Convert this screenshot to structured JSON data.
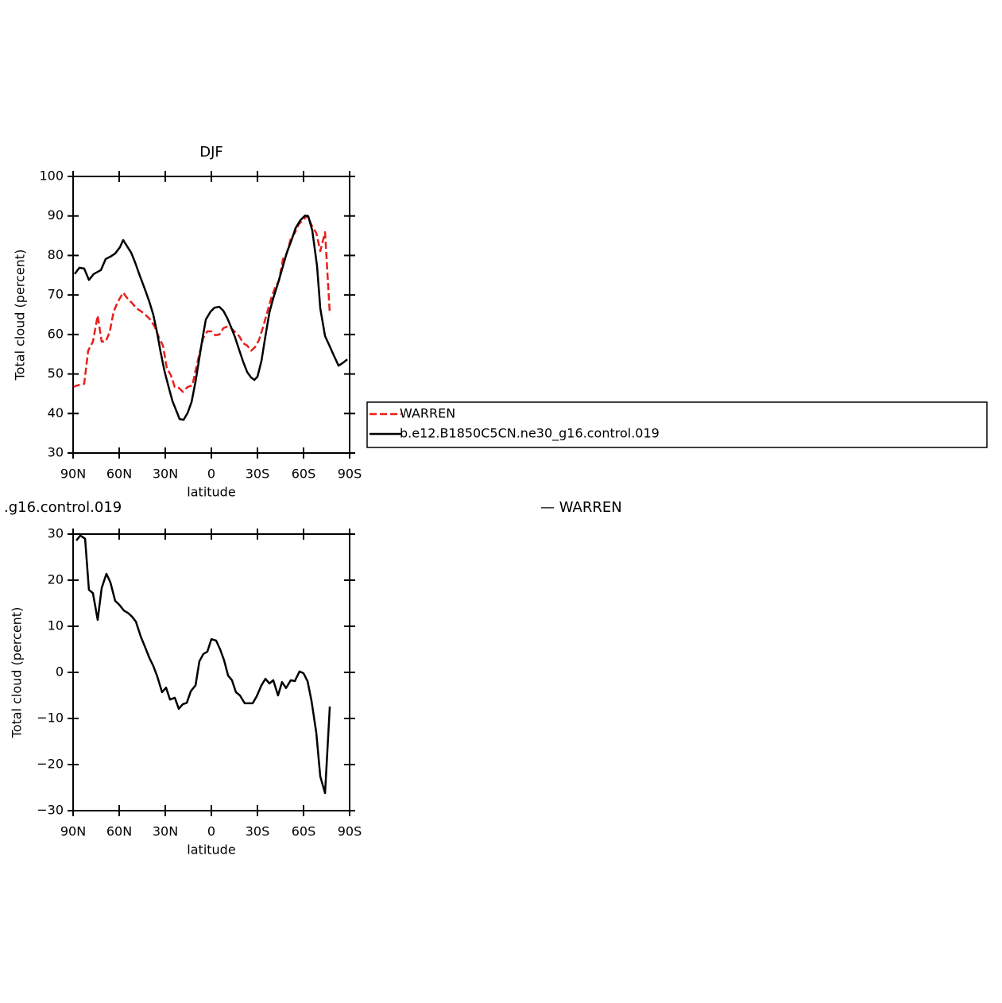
{
  "chart_data": [
    {
      "type": "line",
      "title": "DJF",
      "xlabel": "latitude",
      "ylabel": "Total cloud (percent)",
      "xlim": [
        90,
        -90
      ],
      "xticks": [
        {
          "value": 90,
          "label": "90N"
        },
        {
          "value": 60,
          "label": "60N"
        },
        {
          "value": 30,
          "label": "30N"
        },
        0,
        {
          "value": -30,
          "label": "30S"
        },
        {
          "value": -60,
          "label": "60S"
        },
        {
          "value": -90,
          "label": "90S"
        }
      ],
      "ylim": [
        30,
        100
      ],
      "yticks": [
        30,
        40,
        50,
        60,
        70,
        80,
        90,
        100
      ],
      "legend": "right",
      "series": [
        {
          "name": "WARREN",
          "color": "#e8201c",
          "dash": true,
          "x": [
            90,
            87.4,
            82.8,
            80.2,
            77.1,
            74.0,
            71.4,
            68.8,
            66.2,
            63.6,
            61.0,
            57.4,
            54.8,
            52.2,
            48.6,
            45.5,
            42.4,
            39.3,
            36.7,
            34.1,
            31.5,
            29.0,
            26.4,
            23.8,
            21.2,
            18.6,
            15.5,
            12.4,
            10.3,
            7.8,
            5.2,
            2.6,
            0,
            -2.6,
            -5.2,
            -7.8,
            -10.3,
            -12.9,
            -15.5,
            -18.1,
            -20.7,
            -23.3,
            -25.9,
            -28.4,
            -31.0,
            -33.6,
            -36.2,
            -38.8,
            -41.4,
            -44.0,
            -46.6,
            -49.1,
            -51.7,
            -54.3,
            -56.9,
            -59.5,
            -62.6,
            -65.2,
            -68.3,
            -70.9,
            -74.0,
            -77.1
          ],
          "values": [
            46.7,
            47.1,
            47.5,
            55.9,
            58.2,
            64.8,
            58.2,
            58.2,
            60.6,
            65.8,
            68.2,
            70.6,
            69.2,
            68.2,
            66.6,
            65.8,
            64.8,
            63.6,
            61.8,
            59.2,
            57.2,
            51.5,
            49.7,
            46.7,
            46.5,
            45.5,
            46.7,
            47.1,
            50.9,
            55.1,
            59.2,
            60.8,
            60.8,
            59.8,
            60.0,
            61.6,
            62.0,
            61.6,
            60.6,
            59.6,
            57.8,
            57.2,
            55.9,
            56.8,
            58.6,
            61.8,
            65.4,
            69.0,
            71.8,
            73.6,
            79.1,
            80.5,
            84.3,
            85.7,
            87.9,
            88.9,
            90.1,
            87.7,
            85.7,
            81.1,
            85.9,
            65.2
          ]
        },
        {
          "name": "b.e12.B1850C5CN.ne30_g16.control.019",
          "color": "#000000",
          "x": [
            89.0,
            85.9,
            82.8,
            79.7,
            76.6,
            71.9,
            68.8,
            65.7,
            62.6,
            59.5,
            57.4,
            54.8,
            52.2,
            49.7,
            46.6,
            43.4,
            40.3,
            37.8,
            35.2,
            33.1,
            30.5,
            27.4,
            25.3,
            22.8,
            20.7,
            18.1,
            15.5,
            12.9,
            10.3,
            7.8,
            5.7,
            3.6,
            0.5,
            -2.1,
            -5.2,
            -7.8,
            -10.3,
            -12.9,
            -15.5,
            -18.1,
            -20.7,
            -23.3,
            -25.9,
            -28.0,
            -30.0,
            -32.6,
            -35.2,
            -37.8,
            -40.3,
            -43.4,
            -46.6,
            -49.1,
            -52.2,
            -54.8,
            -57.9,
            -61.0,
            -63.1,
            -65.7,
            -68.8,
            -70.9,
            -74.0,
            -76.6,
            -79.7,
            -82.8,
            -85.9,
            -88.5
          ],
          "values": [
            75.3,
            76.9,
            76.7,
            73.8,
            75.3,
            76.3,
            79.1,
            79.7,
            80.5,
            82.1,
            83.9,
            82.3,
            80.7,
            78.3,
            74.9,
            71.6,
            68.2,
            65.0,
            60.2,
            55.7,
            50.7,
            46.1,
            43.1,
            40.7,
            38.6,
            38.4,
            40.1,
            42.9,
            48.1,
            54.1,
            59.2,
            63.8,
            65.8,
            66.8,
            67.0,
            66.0,
            64.2,
            61.8,
            59.2,
            56.1,
            53.1,
            50.5,
            49.1,
            48.5,
            49.3,
            53.3,
            59.6,
            65.6,
            69.2,
            73.0,
            77.3,
            80.7,
            83.9,
            86.9,
            88.9,
            90.1,
            89.9,
            86.3,
            77.3,
            66.6,
            59.6,
            57.4,
            54.7,
            52.1,
            52.9,
            53.7
          ]
        }
      ]
    },
    {
      "type": "line",
      "title_left": ".g16.control.019",
      "title_right": "— WARREN",
      "xlabel": "latitude",
      "ylabel": "Total cloud (percent)",
      "xlim": [
        90,
        -90
      ],
      "xticks": [
        {
          "value": 90,
          "label": "90N"
        },
        {
          "value": 60,
          "label": "60N"
        },
        {
          "value": 30,
          "label": "30N"
        },
        0,
        {
          "value": -30,
          "label": "30S"
        },
        {
          "value": -60,
          "label": "60S"
        },
        {
          "value": -90,
          "label": "90S"
        }
      ],
      "ylim": [
        -30,
        30
      ],
      "yticks": [
        {
          "value": -30,
          "label": "−30"
        },
        {
          "value": -20,
          "label": "−20"
        },
        {
          "value": -10,
          "label": "−10"
        },
        0,
        10,
        20,
        30
      ],
      "series": [
        {
          "color": "#000000",
          "x": [
            87.9,
            85.3,
            82.2,
            79.7,
            77.1,
            74.0,
            71.4,
            68.3,
            65.7,
            62.6,
            60.0,
            56.9,
            54.3,
            51.7,
            49.1,
            46.0,
            43.4,
            40.3,
            37.8,
            35.2,
            32.1,
            29.5,
            26.9,
            23.8,
            21.2,
            18.6,
            16.0,
            13.4,
            10.3,
            7.8,
            5.2,
            2.6,
            0,
            -3.1,
            -5.7,
            -8.3,
            -10.9,
            -13.4,
            -16.0,
            -18.6,
            -21.7,
            -24.3,
            -26.9,
            -29.5,
            -32.6,
            -35.2,
            -37.8,
            -40.3,
            -43.4,
            -46.0,
            -48.6,
            -51.7,
            -54.3,
            -57.4,
            -60.0,
            -62.6,
            -65.2,
            -68.3,
            -70.9,
            -74.0,
            -77.1
          ],
          "values": [
            28.6,
            29.7,
            29.0,
            17.9,
            17.2,
            11.4,
            18.3,
            21.4,
            19.5,
            15.5,
            14.7,
            13.4,
            12.9,
            12.1,
            11.0,
            7.8,
            5.7,
            3.1,
            1.4,
            -0.9,
            -4.3,
            -3.3,
            -5.9,
            -5.5,
            -7.9,
            -6.9,
            -6.6,
            -4.1,
            -2.8,
            2.4,
            4.0,
            4.5,
            7.2,
            6.9,
            5.0,
            2.6,
            -0.7,
            -1.7,
            -4.3,
            -5.0,
            -6.7,
            -6.7,
            -6.7,
            -5.2,
            -2.8,
            -1.4,
            -2.4,
            -1.7,
            -5.0,
            -2.1,
            -3.4,
            -1.7,
            -1.9,
            0.2,
            -0.2,
            -1.9,
            -6.2,
            -13.1,
            -22.6,
            -26.2,
            -7.4
          ]
        }
      ]
    }
  ]
}
